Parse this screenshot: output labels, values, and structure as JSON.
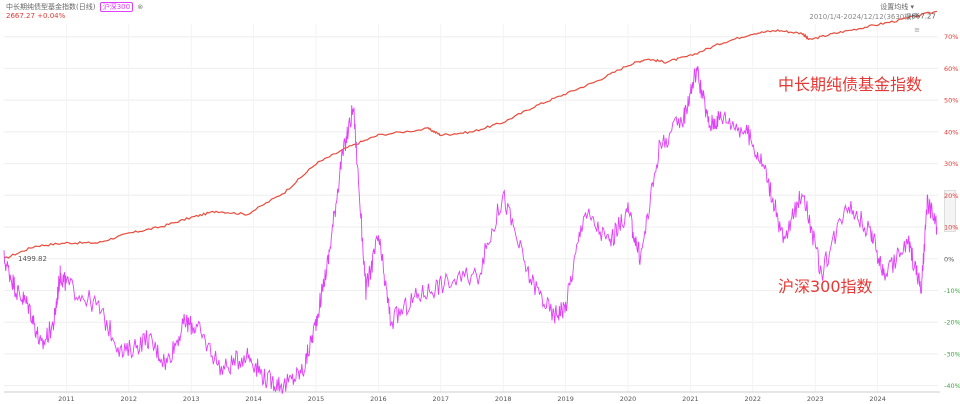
{
  "header": {
    "title": "中长期纯债型基金指数(日线)",
    "tag": "沪深300",
    "tag_close": "⊗",
    "value_line": "2667.27  +0.04%",
    "settings": "设置均线 ▾",
    "range": "2010/1/4-2024/12/12(3630根)"
  },
  "annotations": {
    "start_value": "1499.82",
    "end_value": "2667.27",
    "bond_label": "中长期纯债基金指数",
    "csi_label": "沪深300指数"
  },
  "colors": {
    "bond": "#e74c3c",
    "csi300": "#e040fb",
    "pos_tick": "#e53935",
    "neg_tick": "#43a047",
    "grid": "#eeeeee"
  },
  "chart_data": {
    "type": "line",
    "x_ticks": [
      "2011",
      "2012",
      "2013",
      "2014",
      "2015",
      "2016",
      "2017",
      "2018",
      "2019",
      "2020",
      "2021",
      "2022",
      "2023",
      "2024"
    ],
    "y_ticks": [
      "70%",
      "60%",
      "50%",
      "40%",
      "30%",
      "20%",
      "10%",
      "0%",
      "-10%",
      "-20%",
      "-30%",
      "-40%"
    ],
    "ylim": [
      -42,
      74
    ],
    "series": [
      {
        "name": "中长期纯债基金指数",
        "x": [
          2010.0,
          2010.5,
          2011.0,
          2011.5,
          2012.0,
          2012.5,
          2013.0,
          2013.4,
          2013.9,
          2014.5,
          2015.0,
          2015.5,
          2016.0,
          2016.8,
          2017.0,
          2017.5,
          2018.0,
          2018.5,
          2019.0,
          2019.5,
          2020.0,
          2020.3,
          2020.6,
          2021.0,
          2021.5,
          2022.0,
          2022.4,
          2022.8,
          2022.9,
          2023.3,
          2023.8,
          2024.3,
          2024.95
        ],
        "values": [
          0,
          4,
          5,
          5,
          8,
          10,
          13,
          15,
          14,
          21,
          30,
          35,
          39,
          41,
          39,
          40,
          43,
          48,
          52,
          56,
          61,
          63,
          62,
          64,
          68,
          71,
          72,
          71,
          69,
          71,
          73,
          75,
          78
        ]
      },
      {
        "name": "沪深300指数",
        "x": [
          2010.0,
          2010.2,
          2010.4,
          2010.6,
          2010.8,
          2010.9,
          2011.0,
          2011.5,
          2011.9,
          2012.3,
          2012.6,
          2012.9,
          2013.1,
          2013.5,
          2013.9,
          2014.2,
          2014.5,
          2014.8,
          2015.0,
          2015.2,
          2015.4,
          2015.6,
          2015.8,
          2016.0,
          2016.2,
          2016.6,
          2017.0,
          2017.6,
          2018.0,
          2018.4,
          2018.8,
          2019.0,
          2019.3,
          2019.7,
          2020.0,
          2020.2,
          2020.5,
          2020.9,
          2021.1,
          2021.3,
          2021.5,
          2021.9,
          2022.2,
          2022.5,
          2022.8,
          2023.1,
          2023.5,
          2023.9,
          2024.1,
          2024.5,
          2024.7,
          2024.8,
          2024.95
        ],
        "values": [
          0,
          -10,
          -15,
          -28,
          -20,
          -5,
          -8,
          -15,
          -30,
          -25,
          -33,
          -20,
          -22,
          -35,
          -30,
          -38,
          -40,
          -35,
          -20,
          0,
          30,
          48,
          -10,
          7,
          -20,
          -12,
          -8,
          -5,
          20,
          -5,
          -18,
          -15,
          15,
          5,
          15,
          0,
          35,
          45,
          60,
          42,
          45,
          40,
          28,
          5,
          22,
          -5,
          18,
          8,
          -5,
          5,
          -10,
          18,
          10
        ]
      }
    ]
  }
}
